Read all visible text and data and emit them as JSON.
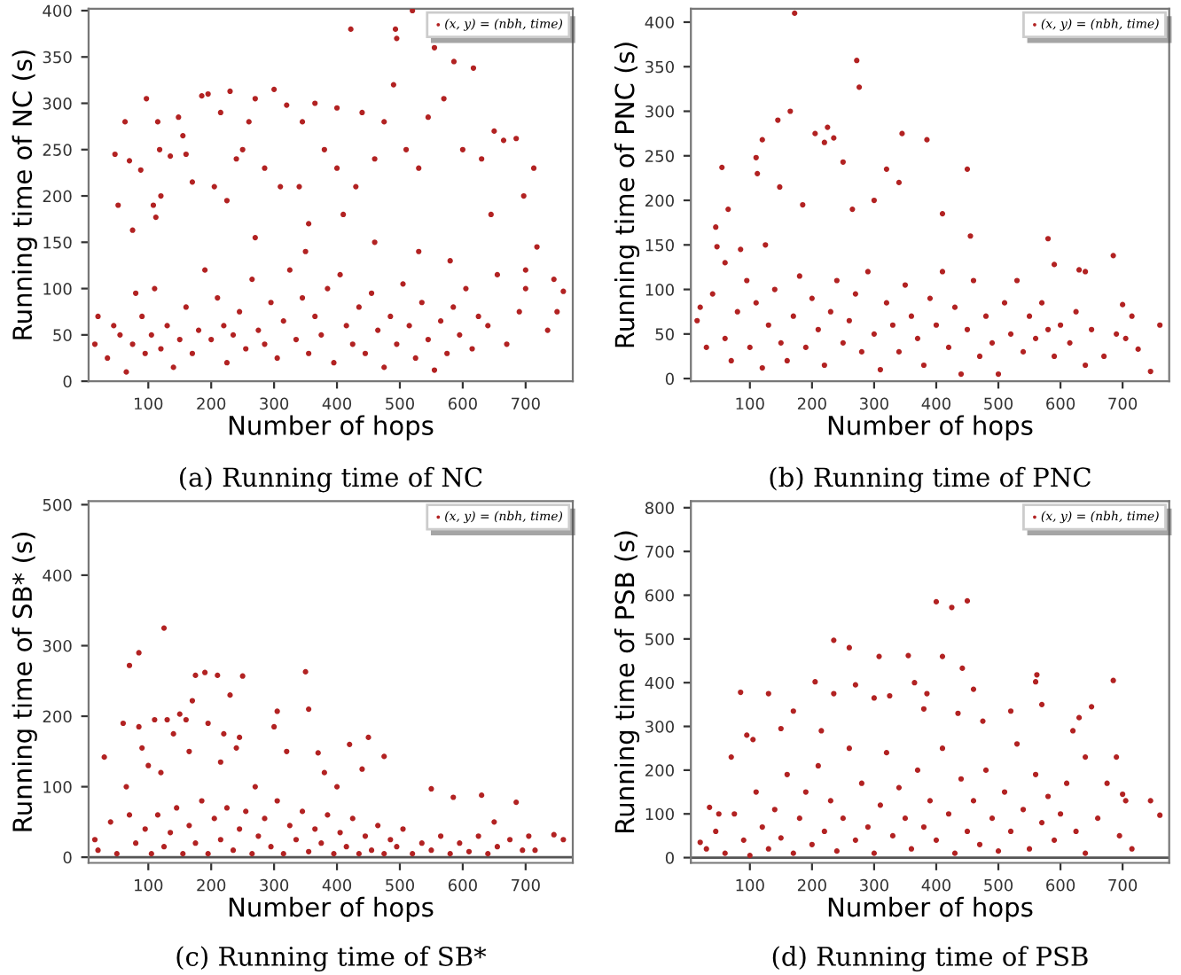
{
  "chart_data": [
    {
      "type": "scatter",
      "title": "(a) Running time of NC",
      "xlabel": "Number of hops",
      "ylabel": "Running time of NC (s)",
      "xlim": [
        5,
        775
      ],
      "ylim": [
        0,
        402
      ],
      "xticks": [
        100,
        200,
        300,
        400,
        500,
        600,
        700
      ],
      "yticks": [
        0,
        50,
        100,
        150,
        200,
        250,
        300,
        350,
        400
      ],
      "legend": "top right",
      "marker": "circle",
      "grid": false,
      "series": [
        {
          "name": "(x, y) = (nbh, time)",
          "color": "#b22222",
          "x": [
            47,
            52,
            63,
            70,
            75,
            88,
            97,
            108,
            112,
            115,
            118,
            120,
            135,
            148,
            155,
            170,
            185,
            195,
            205,
            215,
            230,
            240,
            260,
            270,
            285,
            300,
            310,
            320,
            345,
            355,
            365,
            380,
            400,
            410,
            422,
            430,
            440,
            460,
            475,
            490,
            493,
            495,
            510,
            520,
            530,
            545,
            555,
            570,
            586,
            600,
            617,
            630,
            645,
            650,
            665,
            685,
            697,
            700,
            713,
            718,
            580,
            530,
            460,
            350,
            270,
            400,
            340,
            250,
            225,
            160,
            15,
            20,
            35,
            45,
            55,
            65,
            75,
            80,
            90,
            95,
            105,
            110,
            120,
            130,
            140,
            150,
            160,
            170,
            180,
            190,
            200,
            210,
            220,
            225,
            235,
            245,
            255,
            265,
            275,
            285,
            295,
            305,
            315,
            325,
            335,
            345,
            355,
            365,
            375,
            385,
            395,
            405,
            415,
            425,
            435,
            445,
            455,
            465,
            475,
            485,
            495,
            505,
            515,
            525,
            535,
            545,
            555,
            565,
            575,
            585,
            595,
            605,
            615,
            625,
            640,
            655,
            670,
            690,
            700,
            735,
            745,
            760,
            750
          ],
          "values": [
            245,
            190,
            280,
            238,
            163,
            228,
            305,
            190,
            177,
            280,
            250,
            200,
            243,
            285,
            265,
            215,
            308,
            310,
            210,
            290,
            313,
            240,
            280,
            305,
            230,
            315,
            210,
            298,
            280,
            170,
            300,
            250,
            295,
            180,
            380,
            210,
            290,
            240,
            280,
            320,
            380,
            370,
            250,
            400,
            230,
            285,
            360,
            305,
            345,
            250,
            338,
            240,
            180,
            270,
            260,
            262,
            200,
            120,
            230,
            145,
            130,
            140,
            150,
            140,
            155,
            230,
            210,
            250,
            195,
            245,
            40,
            70,
            25,
            60,
            50,
            10,
            40,
            95,
            70,
            30,
            50,
            100,
            35,
            60,
            15,
            45,
            80,
            30,
            55,
            120,
            45,
            90,
            60,
            20,
            50,
            75,
            35,
            110,
            55,
            40,
            85,
            25,
            65,
            120,
            45,
            90,
            30,
            70,
            50,
            100,
            20,
            115,
            60,
            40,
            80,
            30,
            95,
            55,
            15,
            70,
            40,
            105,
            60,
            25,
            85,
            45,
            12,
            65,
            30,
            80,
            50,
            100,
            35,
            70,
            60,
            115,
            40,
            75,
            100,
            55,
            110,
            97,
            75
          ]
        }
      ]
    },
    {
      "type": "scatter",
      "title": "(b) Running time of PNC",
      "xlabel": "Number of hops",
      "ylabel": "Running time of PNC (s)",
      "xlim": [
        5,
        775
      ],
      "ylim": [
        -3,
        415
      ],
      "xticks": [
        100,
        200,
        300,
        400,
        500,
        600,
        700
      ],
      "yticks": [
        0,
        50,
        100,
        150,
        200,
        250,
        300,
        350,
        400
      ],
      "legend": "top right",
      "marker": "circle",
      "grid": false,
      "series": [
        {
          "name": "(x, y) = (nbh, time)",
          "color": "#b22222",
          "x": [
            20,
            30,
            45,
            47,
            55,
            60,
            65,
            85,
            110,
            112,
            120,
            125,
            145,
            148,
            165,
            172,
            185,
            205,
            220,
            225,
            235,
            250,
            265,
            272,
            276,
            300,
            320,
            345,
            340,
            385,
            410,
            450,
            455,
            580,
            590,
            630,
            640,
            685,
            745,
            760,
            700,
            725,
            15,
            40,
            60,
            70,
            80,
            95,
            100,
            110,
            120,
            130,
            140,
            150,
            160,
            170,
            180,
            190,
            200,
            210,
            220,
            230,
            240,
            250,
            260,
            270,
            280,
            290,
            300,
            310,
            320,
            330,
            340,
            350,
            360,
            370,
            380,
            390,
            400,
            410,
            420,
            430,
            440,
            450,
            460,
            470,
            480,
            490,
            500,
            510,
            520,
            530,
            540,
            550,
            560,
            570,
            580,
            590,
            600,
            615,
            625,
            640,
            650,
            670,
            690,
            705,
            715
          ],
          "values": [
            80,
            35,
            170,
            148,
            237,
            130,
            190,
            145,
            248,
            230,
            268,
            150,
            290,
            215,
            300,
            410,
            195,
            275,
            265,
            282,
            270,
            243,
            190,
            357,
            327,
            200,
            235,
            275,
            220,
            268,
            185,
            235,
            160,
            157,
            128,
            122,
            120,
            138,
            8,
            60,
            83,
            33,
            65,
            95,
            45,
            20,
            75,
            110,
            35,
            85,
            12,
            60,
            100,
            40,
            20,
            70,
            115,
            35,
            90,
            55,
            15,
            75,
            110,
            40,
            65,
            95,
            30,
            120,
            50,
            10,
            85,
            60,
            30,
            105,
            70,
            45,
            15,
            90,
            60,
            120,
            35,
            80,
            5,
            55,
            110,
            25,
            70,
            40,
            5,
            85,
            50,
            110,
            30,
            70,
            45,
            85,
            55,
            25,
            60,
            40,
            75,
            15,
            55,
            25,
            50,
            45,
            70
          ]
        }
      ]
    },
    {
      "type": "scatter",
      "title": "(c) Running time of SB*",
      "xlabel": "Number of hops",
      "ylabel": "Running time of SB* (s)",
      "xlim": [
        5,
        775
      ],
      "ylim": [
        -8,
        505
      ],
      "xticks": [
        100,
        200,
        300,
        400,
        500,
        600,
        700
      ],
      "yticks": [
        0,
        100,
        200,
        300,
        400,
        500
      ],
      "legend": "top right",
      "marker": "circle",
      "grid": false,
      "ref_lines": [
        {
          "axis": "y",
          "value": 0,
          "color": "#555555"
        }
      ],
      "series": [
        {
          "name": "(x, y) = (nbh, time)",
          "color": "#b22222",
          "x": [
            15,
            30,
            40,
            60,
            65,
            70,
            85,
            85,
            90,
            100,
            110,
            120,
            125,
            130,
            140,
            150,
            160,
            165,
            170,
            175,
            190,
            195,
            210,
            215,
            220,
            230,
            240,
            245,
            250,
            270,
            300,
            305,
            320,
            350,
            355,
            370,
            380,
            400,
            420,
            440,
            450,
            475,
            550,
            585,
            630,
            650,
            685,
            745,
            760,
            715,
            20,
            50,
            70,
            80,
            95,
            105,
            115,
            125,
            135,
            145,
            155,
            165,
            175,
            185,
            195,
            205,
            215,
            225,
            235,
            245,
            255,
            265,
            275,
            285,
            295,
            305,
            315,
            325,
            335,
            345,
            355,
            365,
            375,
            385,
            395,
            405,
            415,
            425,
            435,
            445,
            455,
            465,
            475,
            485,
            495,
            505,
            520,
            535,
            550,
            565,
            580,
            595,
            610,
            625,
            640,
            655,
            675,
            695,
            705
          ],
          "values": [
            25,
            142,
            50,
            190,
            100,
            272,
            290,
            185,
            155,
            130,
            195,
            120,
            325,
            195,
            175,
            203,
            195,
            150,
            222,
            258,
            262,
            190,
            258,
            135,
            175,
            230,
            155,
            170,
            257,
            100,
            185,
            207,
            150,
            263,
            210,
            148,
            120,
            100,
            160,
            125,
            170,
            143,
            97,
            85,
            88,
            50,
            78,
            32,
            25,
            10,
            10,
            5,
            60,
            20,
            40,
            5,
            60,
            15,
            35,
            70,
            5,
            45,
            20,
            80,
            5,
            55,
            25,
            70,
            10,
            40,
            65,
            5,
            30,
            55,
            15,
            80,
            5,
            45,
            25,
            65,
            8,
            40,
            20,
            60,
            5,
            35,
            15,
            55,
            5,
            30,
            10,
            45,
            5,
            25,
            15,
            40,
            5,
            20,
            10,
            30,
            5,
            20,
            8,
            30,
            5,
            15,
            25,
            10,
            30
          ]
        }
      ]
    },
    {
      "type": "scatter",
      "title": "(d) Running time of PSB",
      "xlabel": "Number of hops",
      "ylabel": "Running time of PSB (s)",
      "xlim": [
        5,
        775
      ],
      "ylim": [
        -12,
        815
      ],
      "xticks": [
        100,
        200,
        300,
        400,
        500,
        600,
        700
      ],
      "yticks": [
        0,
        100,
        200,
        300,
        400,
        500,
        600,
        700,
        800
      ],
      "legend": "top right",
      "marker": "circle",
      "grid": false,
      "ref_lines": [
        {
          "axis": "y",
          "value": 0,
          "color": "#555555"
        }
      ],
      "series": [
        {
          "name": "(x, y) = (nbh, time)",
          "color": "#b22222",
          "x": [
            20,
            35,
            50,
            70,
            85,
            95,
            105,
            130,
            150,
            170,
            205,
            215,
            235,
            235,
            260,
            270,
            300,
            308,
            325,
            355,
            365,
            380,
            385,
            400,
            410,
            425,
            435,
            442,
            450,
            460,
            475,
            520,
            560,
            562,
            570,
            620,
            630,
            640,
            650,
            685,
            690,
            700,
            745,
            760,
            715,
            30,
            45,
            60,
            75,
            90,
            100,
            110,
            120,
            130,
            140,
            150,
            160,
            170,
            180,
            190,
            200,
            210,
            220,
            230,
            240,
            250,
            260,
            270,
            280,
            290,
            300,
            310,
            320,
            330,
            340,
            350,
            360,
            370,
            380,
            390,
            400,
            410,
            420,
            430,
            440,
            450,
            460,
            470,
            480,
            490,
            500,
            510,
            520,
            530,
            540,
            550,
            560,
            570,
            580,
            590,
            600,
            610,
            625,
            640,
            660,
            675,
            695,
            705
          ],
          "values": [
            35,
            115,
            100,
            230,
            378,
            280,
            270,
            375,
            295,
            335,
            402,
            290,
            497,
            375,
            480,
            395,
            365,
            460,
            370,
            462,
            400,
            340,
            375,
            585,
            460,
            572,
            330,
            433,
            587,
            385,
            312,
            335,
            402,
            418,
            350,
            290,
            320,
            230,
            345,
            405,
            230,
            145,
            130,
            97,
            20,
            20,
            60,
            10,
            100,
            40,
            5,
            150,
            70,
            20,
            110,
            45,
            190,
            10,
            90,
            150,
            30,
            210,
            60,
            130,
            15,
            90,
            250,
            40,
            170,
            70,
            10,
            120,
            240,
            50,
            160,
            90,
            20,
            200,
            70,
            130,
            40,
            250,
            100,
            10,
            180,
            60,
            130,
            30,
            200,
            90,
            15,
            150,
            60,
            260,
            110,
            20,
            190,
            80,
            140,
            40,
            100,
            170,
            60,
            10,
            90,
            170,
            50,
            130
          ]
        }
      ]
    }
  ]
}
